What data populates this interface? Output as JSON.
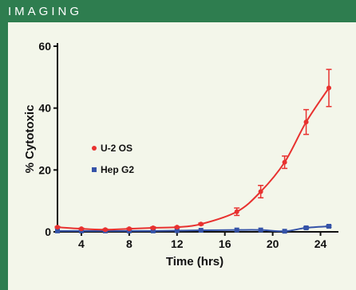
{
  "header": {
    "title": "IMAGING"
  },
  "colors": {
    "header_bg": "#2e7d4f",
    "panel_bg": "#f3f6ea",
    "series_u2os": "#e8312f",
    "series_hepg2": "#3553a8"
  },
  "chart_data": {
    "type": "line",
    "title": "",
    "xlabel": "Time (hrs)",
    "ylabel": "% Cytotoxic",
    "xlim": [
      2,
      25.5
    ],
    "ylim": [
      0,
      60
    ],
    "x_ticks": [
      4,
      8,
      12,
      16,
      20,
      24
    ],
    "y_ticks": [
      0,
      20,
      40,
      60
    ],
    "grid": false,
    "legend_position": "left-middle",
    "series": [
      {
        "name": "U-2 OS",
        "color": "#e8312f",
        "marker": "circle",
        "x": [
          2,
          4,
          6,
          8,
          10,
          12,
          14,
          17,
          19,
          21,
          22.8,
          24.7
        ],
        "y": [
          1.5,
          1.0,
          0.7,
          1.0,
          1.3,
          1.5,
          2.5,
          6.5,
          13.0,
          22.5,
          35.5,
          46.5
        ],
        "err": [
          0.2,
          0.2,
          0.2,
          0.2,
          0.3,
          0.2,
          0.3,
          1.2,
          2.0,
          2.0,
          4.0,
          6.0
        ]
      },
      {
        "name": "Hep G2",
        "color": "#3553a8",
        "marker": "square",
        "x": [
          2,
          4,
          6,
          8,
          10,
          12,
          14,
          17,
          19,
          21,
          22.8,
          24.7
        ],
        "y": [
          0.3,
          0.3,
          0.3,
          0.3,
          0.3,
          0.4,
          0.5,
          0.6,
          0.6,
          0.2,
          1.3,
          1.8
        ],
        "err": [
          0,
          0,
          0,
          0,
          0,
          0,
          0,
          0,
          0,
          0,
          0.3,
          0.3
        ]
      }
    ]
  }
}
